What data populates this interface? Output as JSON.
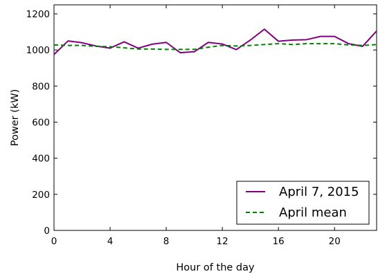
{
  "chart_data": {
    "type": "line",
    "title": "",
    "xlabel": "Hour of the day",
    "ylabel": "Power (kW)",
    "xlim": [
      0,
      23
    ],
    "ylim": [
      0,
      1250
    ],
    "xticks": [
      0,
      4,
      8,
      12,
      16,
      20
    ],
    "yticks": [
      0,
      200,
      400,
      600,
      800,
      1000,
      1200
    ],
    "grid": false,
    "legend_position": "bottom-right",
    "x": [
      0,
      1,
      2,
      3,
      4,
      5,
      6,
      7,
      8,
      9,
      10,
      11,
      12,
      13,
      14,
      15,
      16,
      17,
      18,
      19,
      20,
      21,
      22,
      23
    ],
    "series": [
      {
        "name": "April 7, 2015",
        "color": "#800080",
        "line_style": "solid",
        "values": [
          975,
          1050,
          1040,
          1022,
          1010,
          1045,
          1010,
          1032,
          1042,
          985,
          990,
          1042,
          1033,
          1002,
          1055,
          1115,
          1048,
          1055,
          1057,
          1075,
          1075,
          1035,
          1020,
          1105
        ]
      },
      {
        "name": "April mean",
        "color": "#008000",
        "line_style": "dashed",
        "values": [
          1028,
          1025,
          1025,
          1020,
          1018,
          1012,
          1005,
          1005,
          1003,
          1003,
          1003,
          1015,
          1025,
          1022,
          1025,
          1030,
          1035,
          1030,
          1035,
          1035,
          1035,
          1028,
          1025,
          1030
        ]
      }
    ]
  }
}
